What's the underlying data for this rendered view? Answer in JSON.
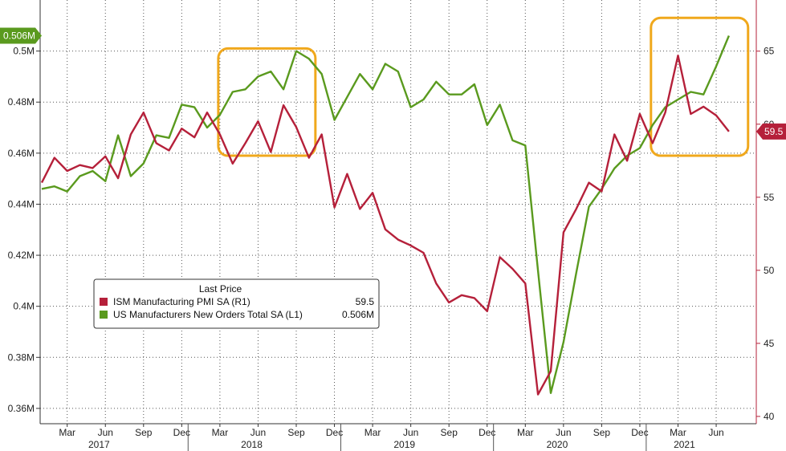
{
  "chart_data": {
    "type": "line",
    "title": "",
    "x": [
      "2017-01",
      "2017-02",
      "2017-03",
      "2017-04",
      "2017-05",
      "2017-06",
      "2017-07",
      "2017-08",
      "2017-09",
      "2017-10",
      "2017-11",
      "2017-12",
      "2018-01",
      "2018-02",
      "2018-03",
      "2018-04",
      "2018-05",
      "2018-06",
      "2018-07",
      "2018-08",
      "2018-09",
      "2018-10",
      "2018-11",
      "2018-12",
      "2019-01",
      "2019-02",
      "2019-03",
      "2019-04",
      "2019-05",
      "2019-06",
      "2019-07",
      "2019-08",
      "2019-09",
      "2019-10",
      "2019-11",
      "2019-12",
      "2020-01",
      "2020-02",
      "2020-03",
      "2020-04",
      "2020-05",
      "2020-06",
      "2020-07",
      "2020-08",
      "2020-09",
      "2020-10",
      "2020-11",
      "2020-12",
      "2021-01",
      "2021-02",
      "2021-03",
      "2021-04",
      "2021-05",
      "2021-06",
      "2021-07"
    ],
    "series": [
      {
        "name": "US Manufacturers New Orders Total SA (L1)",
        "axis": "left",
        "color": "#5a9a1e",
        "values": [
          0.446,
          0.447,
          0.445,
          0.451,
          0.453,
          0.449,
          0.467,
          0.451,
          0.456,
          0.467,
          0.466,
          0.479,
          0.478,
          0.47,
          0.475,
          0.484,
          0.485,
          0.49,
          0.492,
          0.485,
          0.5,
          0.497,
          0.491,
          0.473,
          0.482,
          0.491,
          0.485,
          0.495,
          0.492,
          0.478,
          0.481,
          0.488,
          0.483,
          0.483,
          0.487,
          0.471,
          0.479,
          0.465,
          0.463,
          0.414,
          0.366,
          0.386,
          0.413,
          0.439,
          0.446,
          0.454,
          0.459,
          0.462,
          0.471,
          0.478,
          0.481,
          0.484,
          0.483,
          0.494,
          0.506
        ]
      },
      {
        "name": "ISM Manufacturing PMI SA (R1)",
        "axis": "right",
        "color": "#b5203a",
        "values": [
          56.0,
          57.7,
          56.8,
          57.2,
          57.0,
          57.8,
          56.3,
          59.3,
          60.8,
          58.7,
          58.2,
          59.7,
          59.1,
          60.8,
          59.3,
          57.3,
          58.7,
          60.2,
          58.1,
          61.3,
          59.8,
          57.7,
          59.3,
          54.3,
          56.6,
          54.2,
          55.3,
          52.8,
          52.1,
          51.7,
          51.2,
          49.1,
          47.8,
          48.3,
          48.1,
          47.2,
          50.9,
          50.1,
          49.1,
          41.5,
          43.1,
          52.6,
          54.2,
          56.0,
          55.4,
          59.3,
          57.5,
          60.7,
          58.7,
          60.8,
          64.7,
          60.7,
          61.2,
          60.6,
          59.5
        ]
      }
    ],
    "left_axis": {
      "ylim": [
        0.354,
        0.52
      ],
      "ticks": [
        "0.36M",
        "0.38M",
        "0.4M",
        "0.42M",
        "0.44M",
        "0.46M",
        "0.48M",
        "0.5M"
      ],
      "tick_values": [
        0.36,
        0.38,
        0.4,
        0.42,
        0.44,
        0.46,
        0.48,
        0.5
      ]
    },
    "right_axis": {
      "ylim": [
        39.5,
        68.5
      ],
      "ticks": [
        "40",
        "45",
        "50",
        "55",
        "60",
        "65"
      ],
      "tick_values": [
        40,
        45,
        50,
        55,
        60,
        65
      ]
    },
    "x_axis": {
      "month_labels": [
        {
          "label": "Mar",
          "date": "2017-03"
        },
        {
          "label": "Jun",
          "date": "2017-06"
        },
        {
          "label": "Sep",
          "date": "2017-09"
        },
        {
          "label": "Dec",
          "date": "2017-12"
        },
        {
          "label": "Mar",
          "date": "2018-03"
        },
        {
          "label": "Jun",
          "date": "2018-06"
        },
        {
          "label": "Sep",
          "date": "2018-09"
        },
        {
          "label": "Dec",
          "date": "2018-12"
        },
        {
          "label": "Mar",
          "date": "2019-03"
        },
        {
          "label": "Jun",
          "date": "2019-06"
        },
        {
          "label": "Sep",
          "date": "2019-09"
        },
        {
          "label": "Dec",
          "date": "2019-12"
        },
        {
          "label": "Mar",
          "date": "2020-03"
        },
        {
          "label": "Jun",
          "date": "2020-06"
        },
        {
          "label": "Sep",
          "date": "2020-09"
        },
        {
          "label": "Dec",
          "date": "2020-12"
        },
        {
          "label": "Mar",
          "date": "2021-03"
        },
        {
          "label": "Jun",
          "date": "2021-06"
        }
      ],
      "year_labels": [
        {
          "label": "2017",
          "date": "2017-06"
        },
        {
          "label": "2018",
          "date": "2018-06"
        },
        {
          "label": "2019",
          "date": "2019-06"
        },
        {
          "label": "2020",
          "date": "2020-06"
        },
        {
          "label": "2021",
          "date": "2021-04"
        }
      ],
      "year_dividers": [
        "2017-12",
        "2018-12",
        "2019-12",
        "2020-12"
      ]
    },
    "last_value_tags": {
      "left": "0.506M",
      "right": "59.5"
    },
    "legend": {
      "header": "Last Price",
      "placement": "lower-left",
      "entries": [
        {
          "label": "ISM Manufacturing PMI SA  (R1)",
          "value": "59.5",
          "color": "#b5203a"
        },
        {
          "label": "US Manufacturers New Orders Total SA  (L1)",
          "value": "0.506M",
          "color": "#5a9a1e"
        }
      ]
    },
    "highlight_boxes": [
      {
        "x_start": "2018-03",
        "x_end": "2018-10",
        "left_range": [
          0.459,
          0.501
        ],
        "color": "#f0a81c"
      },
      {
        "x_start": "2021-01",
        "x_end": "2021-08",
        "left_range": [
          0.459,
          0.513
        ],
        "color": "#f0a81c"
      }
    ],
    "grid": true,
    "colors": {
      "axis_right": "#b5203a",
      "grid": "#555555"
    }
  }
}
